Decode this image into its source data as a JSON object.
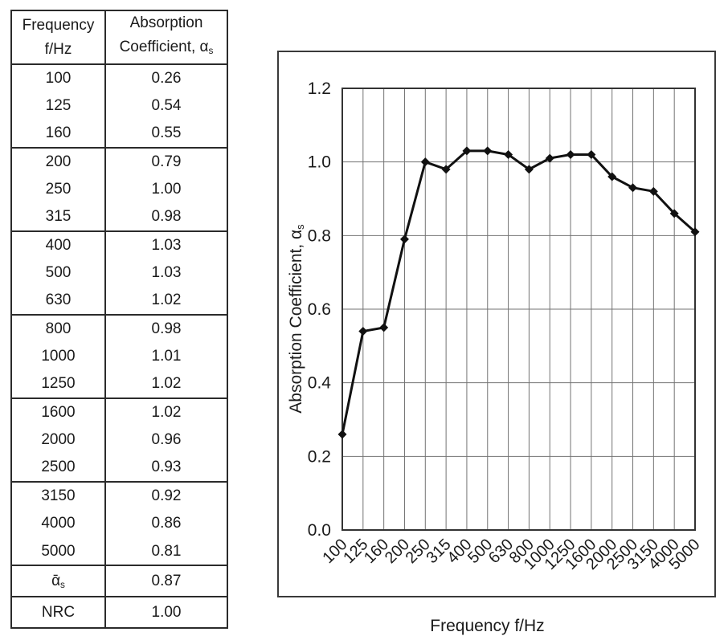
{
  "table": {
    "header": {
      "col1_line1": "Frequency",
      "col1_line2": "f/Hz",
      "col2_line1": "Absorption",
      "col2_line2_main": "Coefficient, α",
      "col2_line2_sub": "s"
    },
    "groups": [
      [
        [
          "100",
          "0.26"
        ],
        [
          "125",
          "0.54"
        ],
        [
          "160",
          "0.55"
        ]
      ],
      [
        [
          "200",
          "0.79"
        ],
        [
          "250",
          "1.00"
        ],
        [
          "315",
          "0.98"
        ]
      ],
      [
        [
          "400",
          "1.03"
        ],
        [
          "500",
          "1.03"
        ],
        [
          "630",
          "1.02"
        ]
      ],
      [
        [
          "800",
          "0.98"
        ],
        [
          "1000",
          "1.01"
        ],
        [
          "1250",
          "1.02"
        ]
      ],
      [
        [
          "1600",
          "1.02"
        ],
        [
          "2000",
          "0.96"
        ],
        [
          "2500",
          "0.93"
        ]
      ],
      [
        [
          "3150",
          "0.92"
        ],
        [
          "4000",
          "0.86"
        ],
        [
          "5000",
          "0.81"
        ]
      ]
    ],
    "summary": [
      {
        "label_main": "ᾱ",
        "label_sub": "s",
        "value": "0.87"
      },
      {
        "label_main": "NRC",
        "label_sub": "",
        "value": "1.00"
      }
    ]
  },
  "chart_data": {
    "type": "line",
    "title": "",
    "categories": [
      "100",
      "125",
      "160",
      "200",
      "250",
      "315",
      "400",
      "500",
      "630",
      "800",
      "1000",
      "1250",
      "1600",
      "2000",
      "2500",
      "3150",
      "4000",
      "5000"
    ],
    "values": [
      0.26,
      0.54,
      0.55,
      0.79,
      1.0,
      0.98,
      1.03,
      1.03,
      1.02,
      0.98,
      1.01,
      1.02,
      1.02,
      0.96,
      0.93,
      0.92,
      0.86,
      0.81
    ],
    "xlabel": "Frequency f/Hz",
    "ylabel_main": "Absorption Coefficient, α",
    "ylabel_sub": "s",
    "ylim": [
      0.0,
      1.2
    ],
    "ytick_step": 0.2,
    "yticks": [
      "0.0",
      "0.2",
      "0.4",
      "0.6",
      "0.8",
      "1.0",
      "1.2"
    ],
    "grid": "both",
    "legend": "none",
    "marker": "diamond",
    "line_color": "#111111",
    "marker_color": "#111111",
    "gridline_color": "#737373",
    "plot_border_color": "#333333",
    "text_color": "#1a1a1a"
  }
}
